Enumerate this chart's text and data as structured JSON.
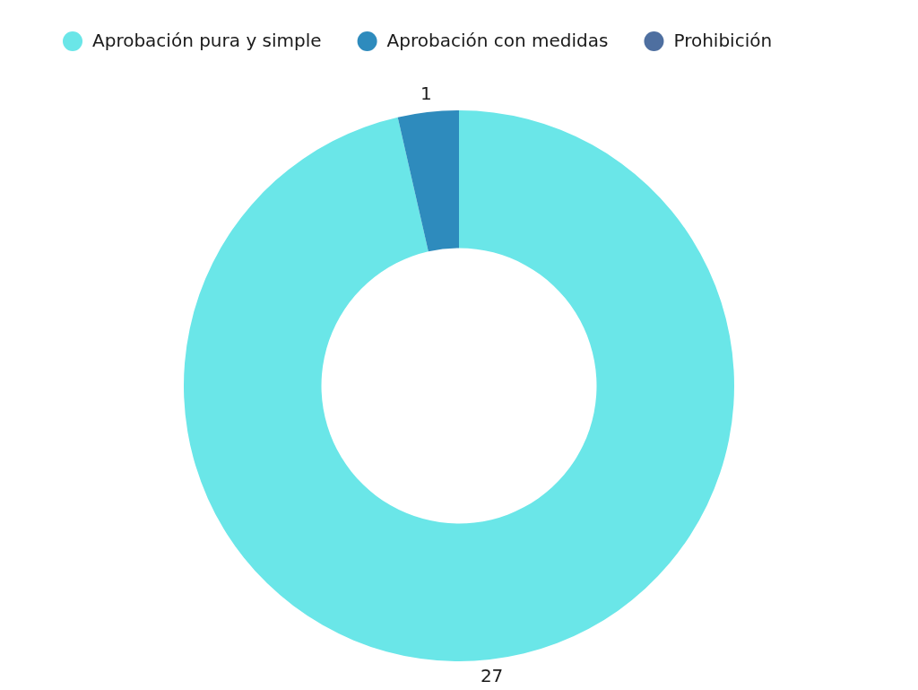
{
  "chart_data": {
    "type": "donut",
    "categories": [
      "Aprobación pura y simple",
      "Aprobación con medidas",
      "Prohibición"
    ],
    "values": [
      27,
      1,
      0
    ],
    "colors": [
      "#6ae6e8",
      "#2e8bbd",
      "#4e6fa0"
    ],
    "value_labels": [
      "27",
      "1",
      null
    ],
    "legend": "top left"
  }
}
